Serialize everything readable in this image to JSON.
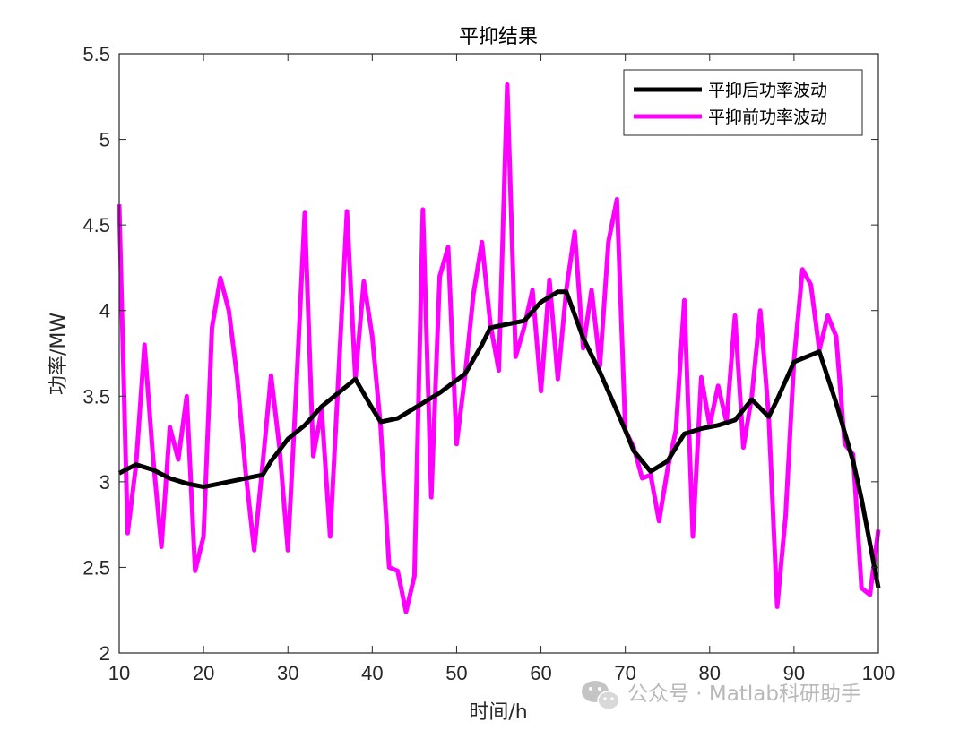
{
  "chart_data": {
    "type": "line",
    "title": "平抑结果",
    "xlabel": "时间/h",
    "ylabel": "功率/MW",
    "xlim": [
      10,
      100
    ],
    "ylim": [
      2,
      5.5
    ],
    "xticks": [
      10,
      20,
      30,
      40,
      50,
      60,
      70,
      80,
      90,
      100
    ],
    "yticks": [
      2,
      2.5,
      3,
      3.5,
      4,
      4.5,
      5,
      5.5
    ],
    "ytick_labels": [
      "2",
      "2.5",
      "3",
      "3.5",
      "4",
      "4.5",
      "5",
      "5.5"
    ],
    "grid": false,
    "legend_position": "top-right",
    "series": [
      {
        "name": "平抑后功率波动",
        "color": "#000000",
        "points": [
          [
            10,
            3.05
          ],
          [
            12,
            3.1
          ],
          [
            14,
            3.07
          ],
          [
            16,
            3.02
          ],
          [
            18,
            2.99
          ],
          [
            20,
            2.97
          ],
          [
            22,
            2.99
          ],
          [
            24,
            3.01
          ],
          [
            26,
            3.03
          ],
          [
            27,
            3.04
          ],
          [
            28,
            3.12
          ],
          [
            30,
            3.25
          ],
          [
            32,
            3.33
          ],
          [
            34,
            3.44
          ],
          [
            36,
            3.52
          ],
          [
            38,
            3.6
          ],
          [
            40,
            3.43
          ],
          [
            41,
            3.35
          ],
          [
            43,
            3.37
          ],
          [
            45,
            3.43
          ],
          [
            48,
            3.52
          ],
          [
            51,
            3.63
          ],
          [
            53,
            3.8
          ],
          [
            54,
            3.9
          ],
          [
            56,
            3.92
          ],
          [
            58,
            3.94
          ],
          [
            60,
            4.05
          ],
          [
            62,
            4.11
          ],
          [
            63,
            4.11
          ],
          [
            65,
            3.84
          ],
          [
            67,
            3.64
          ],
          [
            70,
            3.3
          ],
          [
            71,
            3.18
          ],
          [
            73,
            3.06
          ],
          [
            75,
            3.12
          ],
          [
            77,
            3.28
          ],
          [
            79,
            3.31
          ],
          [
            81,
            3.33
          ],
          [
            83,
            3.36
          ],
          [
            85,
            3.48
          ],
          [
            87,
            3.38
          ],
          [
            88,
            3.48
          ],
          [
            90,
            3.7
          ],
          [
            93,
            3.76
          ],
          [
            95,
            3.46
          ],
          [
            97,
            3.12
          ],
          [
            98,
            2.9
          ],
          [
            100,
            2.38
          ]
        ]
      },
      {
        "name": "平抑前功率波动",
        "color": "#ff00ff",
        "points": [
          [
            10,
            4.62
          ],
          [
            11,
            2.7
          ],
          [
            12,
            3.1
          ],
          [
            13,
            3.8
          ],
          [
            14,
            3.15
          ],
          [
            15,
            2.62
          ],
          [
            16,
            3.32
          ],
          [
            17,
            3.13
          ],
          [
            18,
            3.5
          ],
          [
            19,
            2.48
          ],
          [
            20,
            2.68
          ],
          [
            21,
            3.9
          ],
          [
            22,
            4.19
          ],
          [
            23,
            4.0
          ],
          [
            24,
            3.6
          ],
          [
            25,
            3.05
          ],
          [
            26,
            2.6
          ],
          [
            27,
            3.1
          ],
          [
            28,
            3.62
          ],
          [
            29,
            3.2
          ],
          [
            30,
            2.6
          ],
          [
            31,
            3.55
          ],
          [
            32,
            4.57
          ],
          [
            33,
            3.15
          ],
          [
            34,
            3.42
          ],
          [
            35,
            2.68
          ],
          [
            36,
            3.62
          ],
          [
            37,
            4.58
          ],
          [
            38,
            3.6
          ],
          [
            39,
            4.17
          ],
          [
            40,
            3.85
          ],
          [
            41,
            3.32
          ],
          [
            42,
            2.5
          ],
          [
            43,
            2.48
          ],
          [
            44,
            2.24
          ],
          [
            45,
            2.45
          ],
          [
            46,
            4.59
          ],
          [
            47,
            2.91
          ],
          [
            48,
            4.2
          ],
          [
            49,
            4.37
          ],
          [
            50,
            3.22
          ],
          [
            51,
            3.62
          ],
          [
            52,
            4.1
          ],
          [
            53,
            4.4
          ],
          [
            54,
            3.92
          ],
          [
            55,
            3.65
          ],
          [
            56,
            5.32
          ],
          [
            57,
            3.73
          ],
          [
            58,
            3.9
          ],
          [
            59,
            4.12
          ],
          [
            60,
            3.53
          ],
          [
            61,
            4.18
          ],
          [
            62,
            3.6
          ],
          [
            63,
            4.12
          ],
          [
            64,
            4.46
          ],
          [
            65,
            3.78
          ],
          [
            66,
            4.12
          ],
          [
            67,
            3.68
          ],
          [
            68,
            4.4
          ],
          [
            69,
            4.65
          ],
          [
            70,
            3.3
          ],
          [
            71,
            3.2
          ],
          [
            72,
            3.02
          ],
          [
            73,
            3.04
          ],
          [
            74,
            2.77
          ],
          [
            75,
            3.07
          ],
          [
            76,
            3.3
          ],
          [
            77,
            4.06
          ],
          [
            78,
            2.68
          ],
          [
            79,
            3.61
          ],
          [
            80,
            3.33
          ],
          [
            81,
            3.56
          ],
          [
            82,
            3.35
          ],
          [
            83,
            3.97
          ],
          [
            84,
            3.2
          ],
          [
            85,
            3.5
          ],
          [
            86,
            4.0
          ],
          [
            87,
            3.38
          ],
          [
            88,
            2.27
          ],
          [
            89,
            2.8
          ],
          [
            90,
            3.71
          ],
          [
            91,
            4.24
          ],
          [
            92,
            4.15
          ],
          [
            93,
            3.77
          ],
          [
            94,
            3.97
          ],
          [
            95,
            3.85
          ],
          [
            96,
            3.22
          ],
          [
            97,
            3.16
          ],
          [
            98,
            2.38
          ],
          [
            99,
            2.34
          ],
          [
            100,
            2.72
          ]
        ]
      }
    ]
  },
  "watermark": {
    "text": "公众号 · Matlab科研助手",
    "icon": "wechat-icon"
  }
}
